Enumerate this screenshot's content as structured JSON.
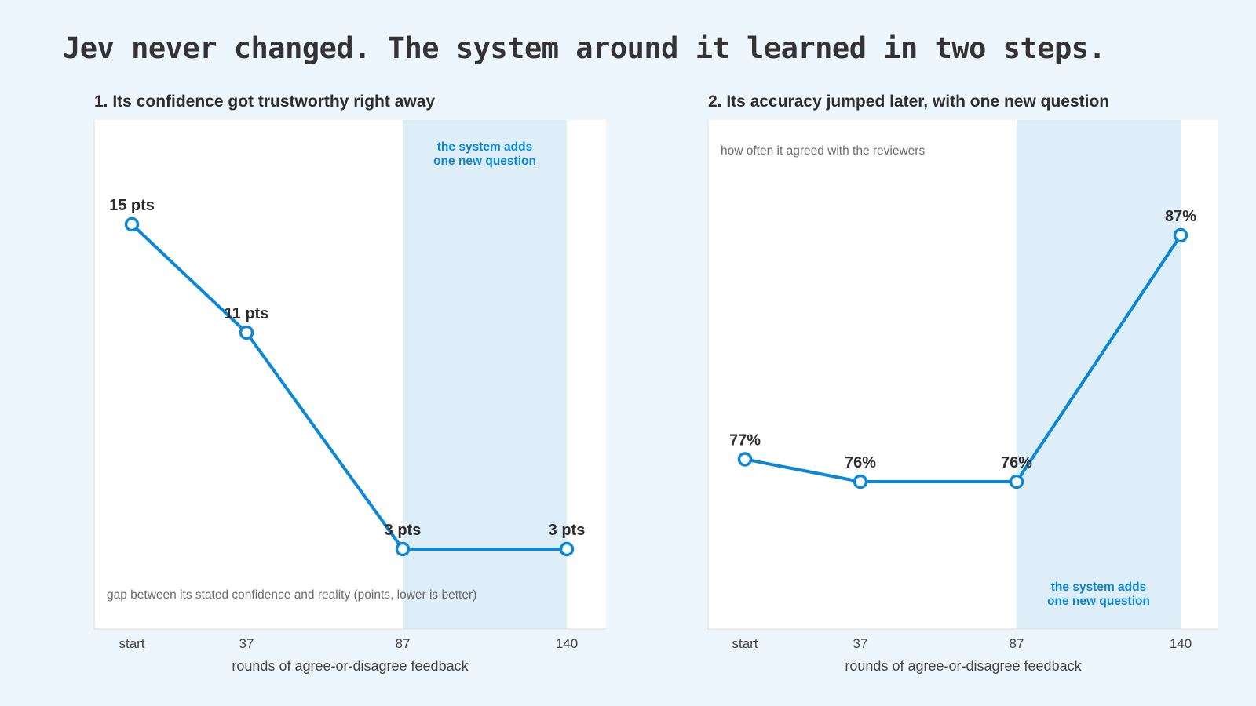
{
  "page_title": "Jev never changed. The system around it learned in two steps.",
  "colors": {
    "line": "#0a87d6",
    "band": "#deeef9",
    "plot_bg": "#ffffff",
    "page_bg": "#eef6fd"
  },
  "chart_data": [
    {
      "type": "line",
      "title": "1. Its confidence got trustworthy right away",
      "categories": [
        "start",
        "37",
        "87",
        "140"
      ],
      "x": [
        0,
        37,
        87,
        140
      ],
      "values": [
        15,
        11,
        3,
        3
      ],
      "point_labels": [
        "15 pts",
        "11 pts",
        "3 pts",
        "3 pts"
      ],
      "xlabel": "rounds of agree-or-disagree feedback",
      "ylabel": "",
      "ylim": [
        0,
        20
      ],
      "note": "gap between its stated confidence and reality (points, lower is better)",
      "band": {
        "from": 87,
        "to": 140,
        "label": [
          "the system adds",
          "one new question"
        ],
        "label_position": "top"
      },
      "grid": false
    },
    {
      "type": "line",
      "title": "2. Its accuracy jumped later, with one new question",
      "categories": [
        "start",
        "37",
        "87",
        "140"
      ],
      "x": [
        0,
        37,
        87,
        140
      ],
      "values": [
        77,
        76,
        76,
        87
      ],
      "point_labels": [
        "77%",
        "76%",
        "76%",
        "87%"
      ],
      "xlabel": "rounds of agree-or-disagree feedback",
      "ylabel": "",
      "ylim": [
        60,
        95
      ],
      "note": "how often it agreed with the reviewers",
      "band": {
        "from": 87,
        "to": 140,
        "label": [
          "the system adds",
          "one new question"
        ],
        "label_position": "bottom"
      },
      "grid": false
    }
  ]
}
